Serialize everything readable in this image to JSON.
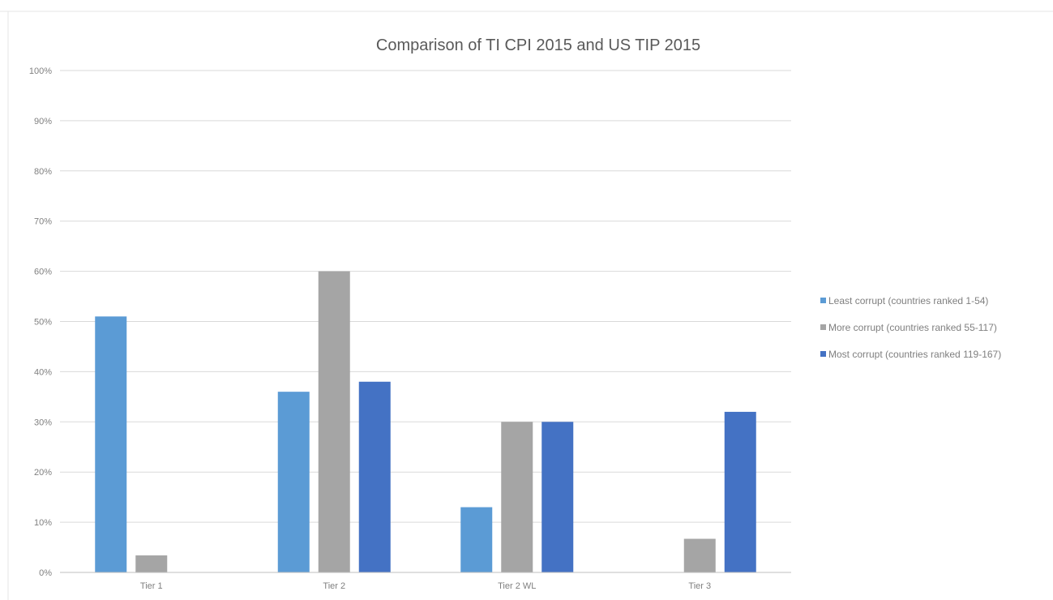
{
  "chart_data": {
    "type": "bar",
    "title": "Comparison of TI CPI 2015 and US TIP 2015",
    "xlabel": "",
    "ylabel": "",
    "categories": [
      "Tier 1",
      "Tier 2",
      "Tier 2 WL",
      "Tier 3"
    ],
    "series": [
      {
        "name": "Least corrupt (countries ranked 1-54)",
        "color": "#5b9bd5",
        "values": [
          51,
          36,
          13,
          0
        ]
      },
      {
        "name": "More corrupt (countries ranked 55-117)",
        "color": "#a5a5a5",
        "values": [
          3.4,
          60,
          30,
          6.7
        ]
      },
      {
        "name": "Most corrupt (countries ranked 119-167)",
        "color": "#4472c4",
        "values": [
          0,
          38,
          30,
          32
        ]
      }
    ],
    "ylim": [
      0,
      100
    ],
    "y_ticks": [
      "0%",
      "10%",
      "20%",
      "30%",
      "40%",
      "50%",
      "60%",
      "70%",
      "80%",
      "90%",
      "100%"
    ],
    "grid": true,
    "legend_position": "right"
  }
}
